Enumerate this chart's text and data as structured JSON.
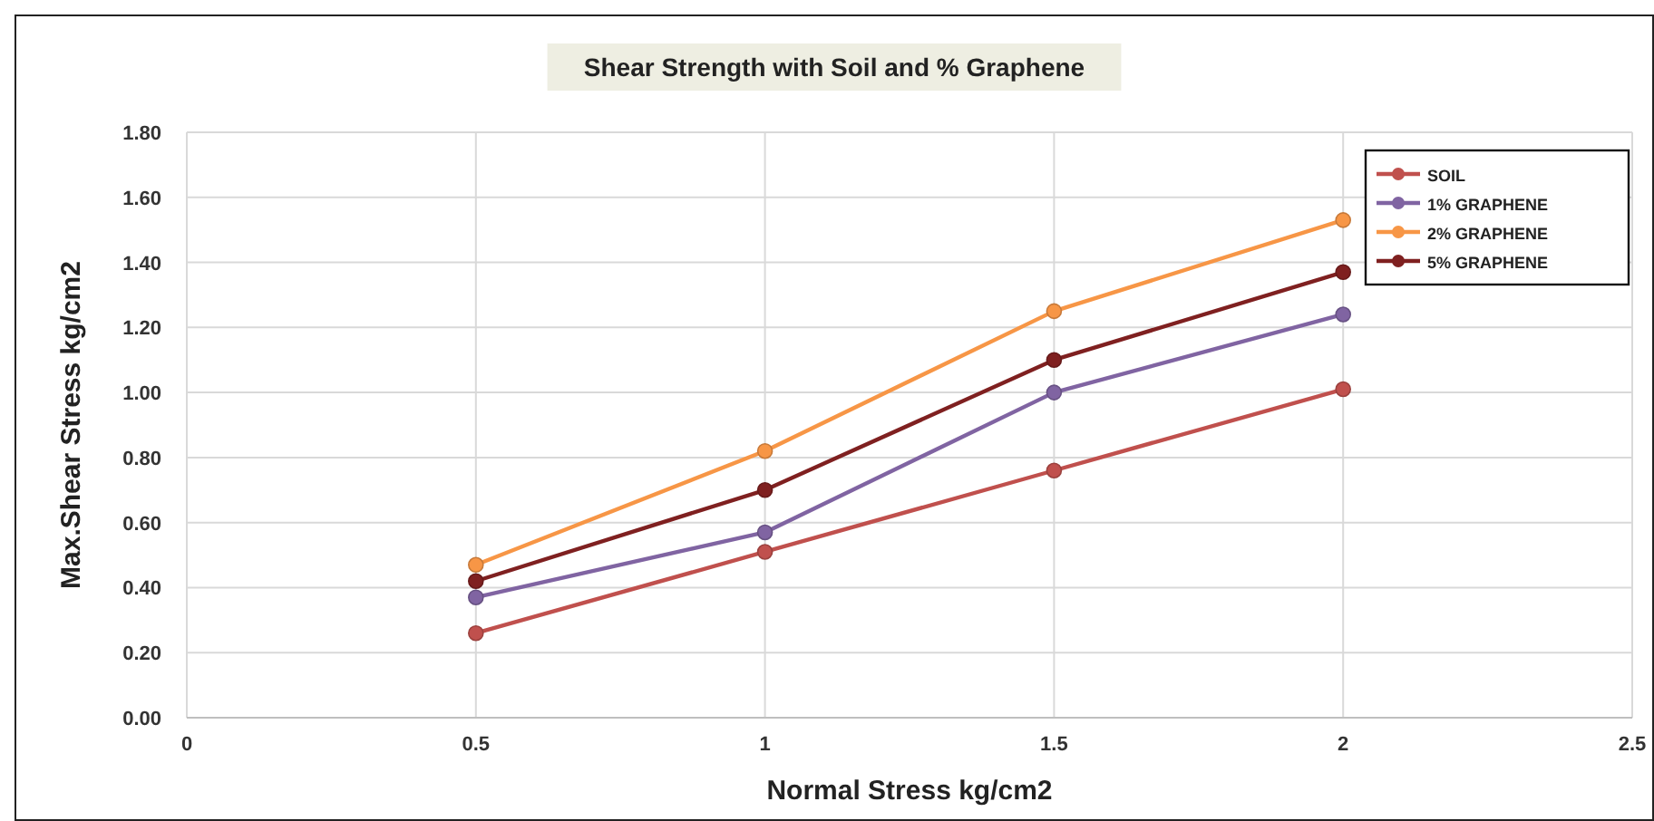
{
  "chart_data": {
    "type": "line",
    "title": "Shear Strength with Soil and % Graphene",
    "xlabel": "Normal Stress kg/cm2",
    "ylabel": "Max.Shear Stress kg/cm2",
    "x": [
      0.5,
      1,
      1.5,
      2
    ],
    "series": [
      {
        "name": "SOIL",
        "color": "#c0504d",
        "values": [
          0.26,
          0.51,
          0.76,
          1.01
        ]
      },
      {
        "name": "1% GRAPHENE",
        "color": "#8064a2",
        "values": [
          0.37,
          0.57,
          1.0,
          1.24
        ]
      },
      {
        "name": "2% GRAPHENE",
        "color": "#f79646",
        "values": [
          0.47,
          0.82,
          1.25,
          1.53
        ]
      },
      {
        "name": "5% GRAPHENE",
        "color": "#7f2020",
        "values": [
          0.42,
          0.7,
          1.1,
          1.37
        ]
      }
    ],
    "xlim": [
      0,
      2.5
    ],
    "xticks": [
      0,
      {
        "value": 0.5,
        "label": "0.5"
      },
      1,
      {
        "value": 1.5,
        "label": "1.5"
      },
      2,
      {
        "value": 2.5,
        "label": "2.5"
      }
    ],
    "ylim": [
      0,
      1.8
    ],
    "yticks": [
      {
        "value": 0,
        "label": "0.00"
      },
      {
        "value": 0.2,
        "label": "0.20"
      },
      {
        "value": 0.4,
        "label": "0.40"
      },
      {
        "value": 0.6,
        "label": "0.60"
      },
      {
        "value": 0.8,
        "label": "0.80"
      },
      {
        "value": 1,
        "label": "1.00"
      },
      {
        "value": 1.2,
        "label": "1.20"
      },
      {
        "value": 1.4,
        "label": "1.40"
      },
      {
        "value": 1.6,
        "label": "1.60"
      },
      {
        "value": 1.8,
        "label": "1.80"
      }
    ],
    "grid": true,
    "legend": "top right",
    "marker": "circle",
    "line_style": "solid"
  }
}
